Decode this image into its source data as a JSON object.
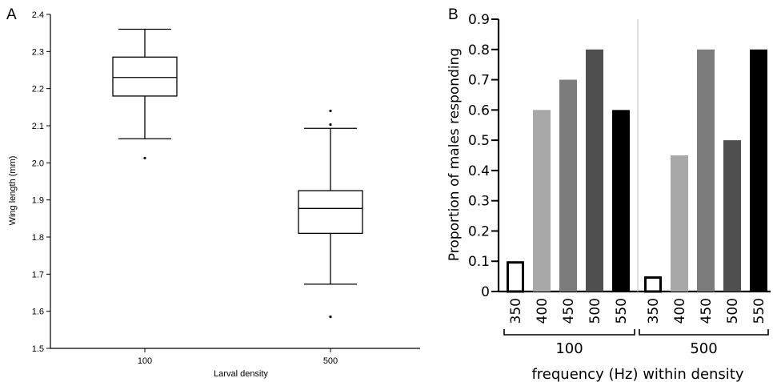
{
  "chart_data": [
    {
      "panel_label": "A",
      "type": "box",
      "xlabel": "Larval density",
      "ylabel": "Wing length (mm)",
      "ylim": [
        1.5,
        2.4
      ],
      "yticks": [
        1.5,
        1.6,
        1.7,
        1.8,
        1.9,
        2.0,
        2.1,
        2.2,
        2.3,
        2.4
      ],
      "ytick_labels": [
        "1.5",
        "1.6",
        "1.7",
        "1.8",
        "1.9",
        "2.0",
        "2.1",
        "2.2",
        "2.3",
        "2.4"
      ],
      "categories": [
        "100",
        "500"
      ],
      "boxes": [
        {
          "category": "100",
          "whisker_low": 2.065,
          "q1": 2.18,
          "median": 2.23,
          "q3": 2.285,
          "whisker_high": 2.36,
          "outliers": [
            2.013
          ]
        },
        {
          "category": "500",
          "whisker_low": 1.673,
          "q1": 1.81,
          "median": 1.877,
          "q3": 1.925,
          "whisker_high": 2.093,
          "outliers": [
            2.14,
            2.103,
            1.585
          ]
        }
      ]
    },
    {
      "panel_label": "B",
      "type": "bar",
      "xlabel": "frequency (Hz) within density",
      "ylabel": "Proportion of males responding",
      "ylim": [
        0,
        0.9
      ],
      "yticks": [
        0,
        0.1,
        0.2,
        0.3,
        0.4,
        0.5,
        0.6,
        0.7,
        0.8,
        0.9
      ],
      "ytick_labels": [
        "0",
        "0.1",
        "0.2",
        "0.3",
        "0.4",
        "0.5",
        "0.6",
        "0.7",
        "0.8",
        "0.9"
      ],
      "groups": [
        {
          "label": "100",
          "categories": [
            "350",
            "400",
            "450",
            "500",
            "550"
          ],
          "values": [
            0.1,
            0.6,
            0.7,
            0.8,
            0.6
          ]
        },
        {
          "label": "500",
          "categories": [
            "350",
            "400",
            "450",
            "500",
            "550"
          ],
          "values": [
            0.05,
            0.45,
            0.8,
            0.5,
            0.8
          ]
        }
      ],
      "bar_colors": [
        "#ffffff",
        "#a8a8a8",
        "#7c7c7c",
        "#4f4f4f",
        "#000000"
      ]
    }
  ]
}
